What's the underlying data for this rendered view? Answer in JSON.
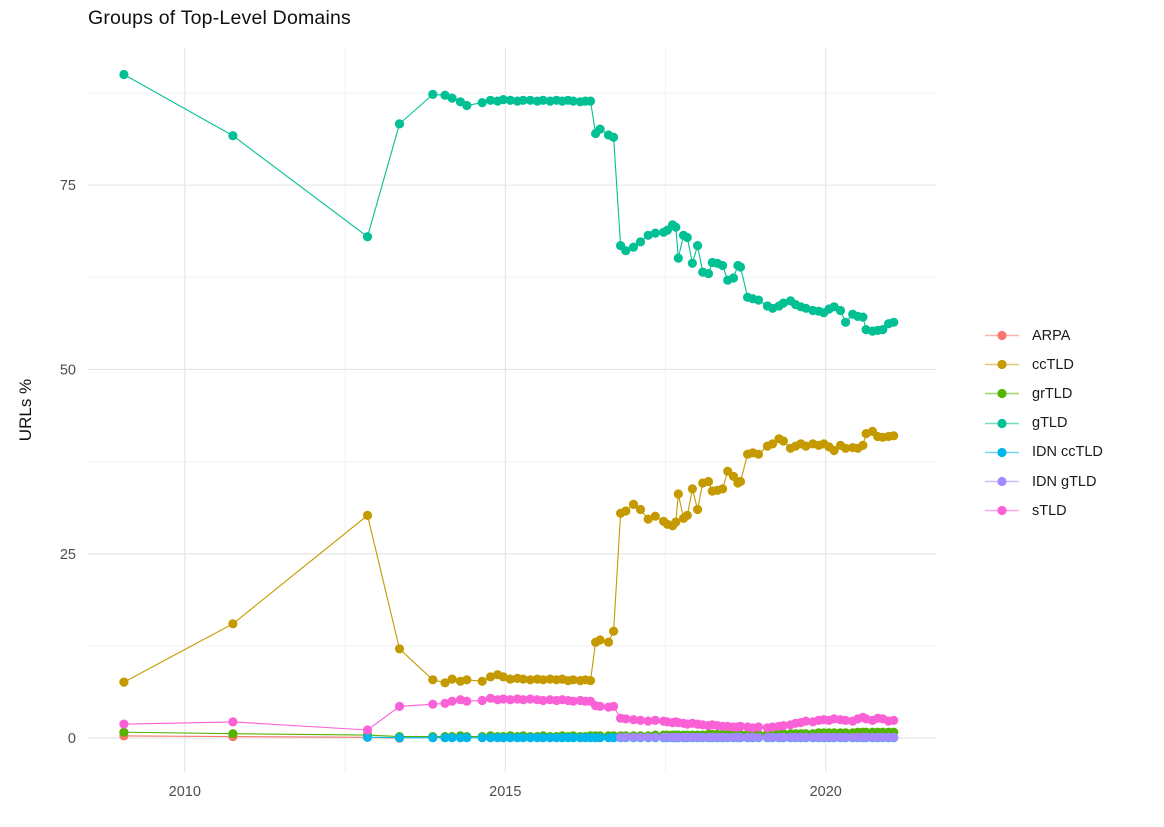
{
  "chart_data": {
    "type": "line",
    "title": "Groups of Top-Level Domains",
    "xlabel": "",
    "ylabel": "URLs %",
    "x_unit": "year",
    "grid": true,
    "legend_position": "right",
    "xlim": [
      2008.49,
      2021.72
    ],
    "ylim": [
      -4.6,
      93.6
    ],
    "x_ticks": [
      2010,
      2015,
      2020
    ],
    "x_minor_ticks": [
      2012.5,
      2017.5
    ],
    "y_ticks": [
      0,
      25,
      50,
      75
    ],
    "y_minor_ticks": [
      12.5,
      37.5,
      62.5,
      87.5
    ],
    "x": [
      2009.05,
      2010.75,
      2012.85,
      2013.35,
      2013.87,
      2014.06,
      2014.17,
      2014.3,
      2014.4,
      2014.64,
      2014.77,
      2014.88,
      2014.97,
      2015.08,
      2015.19,
      2015.28,
      2015.39,
      2015.5,
      2015.59,
      2015.7,
      2015.8,
      2015.89,
      2015.98,
      2016.06,
      2016.17,
      2016.25,
      2016.33,
      2016.41,
      2016.48,
      2016.61,
      2016.69,
      2016.8,
      2016.88,
      2017.0,
      2017.11,
      2017.23,
      2017.34,
      2017.47,
      2017.53,
      2017.61,
      2017.66,
      2017.7,
      2017.78,
      2017.84,
      2017.92,
      2018.0,
      2018.08,
      2018.17,
      2018.23,
      2018.31,
      2018.39,
      2018.47,
      2018.56,
      2018.63,
      2018.67,
      2018.78,
      2018.86,
      2018.95,
      2019.09,
      2019.17,
      2019.27,
      2019.34,
      2019.45,
      2019.53,
      2019.61,
      2019.69,
      2019.8,
      2019.89,
      2019.97,
      2020.05,
      2020.13,
      2020.23,
      2020.31,
      2020.42,
      2020.5,
      2020.58,
      2020.63,
      2020.73,
      2020.81,
      2020.89,
      2020.98,
      2021.06
    ],
    "draw_order": [
      "ARPA",
      "ccTLD",
      "grTLD",
      "gTLD",
      "IDN ccTLD",
      "IDN gTLD",
      "sTLD"
    ],
    "series": [
      {
        "name": "ARPA",
        "color": "#F8766D",
        "x_from_index": 0,
        "values": [
          0.3,
          0.2,
          0.1,
          0.0
        ]
      },
      {
        "name": "ccTLD",
        "color": "#C49A00",
        "x_from_index": 0,
        "values": [
          7.6,
          15.5,
          30.2,
          12.1,
          7.9,
          7.5,
          8.0,
          7.7,
          7.9,
          7.7,
          8.3,
          8.6,
          8.3,
          8.0,
          8.1,
          8.0,
          7.9,
          8.0,
          7.9,
          8.0,
          7.9,
          8.0,
          7.8,
          7.9,
          7.8,
          7.9,
          7.8,
          13.0,
          13.3,
          13.0,
          14.5,
          30.5,
          30.8,
          31.7,
          31.0,
          29.7,
          30.1,
          29.4,
          29.0,
          28.8,
          29.3,
          33.1,
          29.8,
          30.2,
          33.8,
          31.0,
          34.6,
          34.8,
          33.5,
          33.6,
          33.8,
          36.2,
          35.5,
          34.6,
          34.8,
          38.5,
          38.7,
          38.5,
          39.6,
          39.9,
          40.6,
          40.3,
          39.3,
          39.6,
          39.9,
          39.6,
          39.9,
          39.7,
          39.9,
          39.5,
          39.0,
          39.7,
          39.3,
          39.4,
          39.3,
          39.7,
          41.3,
          41.6,
          40.9,
          40.8,
          40.9,
          41.0
        ]
      },
      {
        "name": "grTLD",
        "color": "#53B400",
        "x_from_index": 0,
        "values": [
          0.8,
          0.6,
          0.4,
          0.2,
          0.2,
          0.2,
          0.2,
          0.3,
          0.2,
          0.2,
          0.3,
          0.2,
          0.2,
          0.3,
          0.2,
          0.3,
          0.2,
          0.2,
          0.3,
          0.2,
          0.2,
          0.3,
          0.2,
          0.3,
          0.2,
          0.2,
          0.3,
          0.3,
          0.3,
          0.3,
          0.3,
          0.3,
          0.3,
          0.3,
          0.3,
          0.3,
          0.4,
          0.4,
          0.4,
          0.4,
          0.4,
          0.4,
          0.4,
          0.4,
          0.4,
          0.4,
          0.4,
          0.5,
          0.5,
          0.5,
          0.5,
          0.5,
          0.5,
          0.5,
          0.5,
          0.5,
          0.5,
          0.5,
          0.6,
          0.6,
          0.6,
          0.6,
          0.6,
          0.6,
          0.6,
          0.6,
          0.6,
          0.7,
          0.7,
          0.7,
          0.7,
          0.7,
          0.7,
          0.7,
          0.8,
          0.8,
          0.8,
          0.8,
          0.8,
          0.8,
          0.8,
          0.8
        ]
      },
      {
        "name": "gTLD",
        "color": "#00C094",
        "x_from_index": 0,
        "values": [
          90.0,
          81.7,
          68.0,
          83.3,
          87.3,
          87.2,
          86.8,
          86.3,
          85.8,
          86.2,
          86.5,
          86.4,
          86.6,
          86.5,
          86.4,
          86.5,
          86.5,
          86.4,
          86.5,
          86.4,
          86.5,
          86.4,
          86.5,
          86.4,
          86.3,
          86.4,
          86.4,
          82.0,
          82.6,
          81.8,
          81.5,
          66.8,
          66.1,
          66.6,
          67.3,
          68.2,
          68.5,
          68.6,
          68.9,
          69.6,
          69.3,
          65.1,
          68.2,
          67.9,
          64.4,
          66.8,
          63.2,
          63.0,
          64.5,
          64.4,
          64.1,
          62.1,
          62.4,
          64.1,
          63.9,
          59.8,
          59.6,
          59.4,
          58.6,
          58.3,
          58.6,
          59.0,
          59.3,
          58.8,
          58.5,
          58.3,
          58.0,
          57.9,
          57.7,
          58.2,
          58.5,
          58.0,
          56.4,
          57.5,
          57.2,
          57.1,
          55.4,
          55.2,
          55.3,
          55.4,
          56.2,
          56.4
        ]
      },
      {
        "name": "IDN ccTLD",
        "color": "#00B6EB",
        "x_from_index": 2,
        "values": [
          0.1,
          0.05,
          0.05,
          0.05,
          0.05,
          0.05,
          0.05,
          0.05,
          0.05,
          0.05,
          0.05,
          0.05,
          0.05,
          0.05,
          0.05,
          0.05,
          0.05,
          0.05,
          0.05,
          0.05,
          0.05,
          0.05,
          0.05,
          0.05,
          0.05,
          0.05,
          0.05,
          0.05,
          0.05,
          0.05,
          0.05,
          0.05,
          0.05,
          0.05,
          0.05,
          0.05,
          0.05,
          0.05,
          0.05,
          0.05,
          0.05,
          0.05,
          0.05,
          0.05,
          0.05,
          0.05,
          0.05,
          0.05,
          0.05,
          0.05,
          0.05,
          0.05,
          0.05,
          0.05,
          0.05,
          0.05,
          0.05,
          0.05,
          0.05,
          0.05,
          0.05,
          0.05,
          0.05,
          0.05,
          0.05,
          0.05,
          0.05,
          0.05,
          0.05,
          0.05,
          0.05,
          0.05,
          0.05,
          0.05,
          0.05,
          0.05,
          0.05,
          0.05,
          0.05,
          0.05
        ]
      },
      {
        "name": "IDN gTLD",
        "color": "#A58AFF",
        "x_from_index": 31,
        "values": [
          0.1,
          0.1,
          0.1,
          0.1,
          0.1,
          0.1,
          0.1,
          0.1,
          0.1,
          0.1,
          0.1,
          0.1,
          0.1,
          0.1,
          0.1,
          0.1,
          0.1,
          0.1,
          0.1,
          0.1,
          0.1,
          0.1,
          0.1,
          0.1,
          0.1,
          0.1,
          0.1,
          0.1,
          0.1,
          0.1,
          0.1,
          0.1,
          0.1,
          0.1,
          0.1,
          0.1,
          0.1,
          0.1,
          0.1,
          0.1,
          0.1,
          0.1,
          0.1,
          0.1,
          0.1,
          0.1,
          0.1,
          0.1,
          0.1,
          0.1,
          0.1
        ]
      },
      {
        "name": "sTLD",
        "color": "#FB61D7",
        "x_from_index": 0,
        "values": [
          1.9,
          2.2,
          1.1,
          4.3,
          4.6,
          4.7,
          5.0,
          5.2,
          5.0,
          5.1,
          5.4,
          5.2,
          5.3,
          5.2,
          5.3,
          5.2,
          5.3,
          5.2,
          5.1,
          5.2,
          5.1,
          5.2,
          5.1,
          5.0,
          5.1,
          5.0,
          5.0,
          4.4,
          4.3,
          4.2,
          4.3,
          2.7,
          2.6,
          2.5,
          2.4,
          2.3,
          2.4,
          2.3,
          2.2,
          2.1,
          2.2,
          2.1,
          2.0,
          1.9,
          2.0,
          1.9,
          1.8,
          1.7,
          1.8,
          1.7,
          1.6,
          1.6,
          1.5,
          1.5,
          1.6,
          1.5,
          1.4,
          1.5,
          1.4,
          1.5,
          1.6,
          1.7,
          1.8,
          2.0,
          2.1,
          2.3,
          2.2,
          2.4,
          2.5,
          2.4,
          2.6,
          2.5,
          2.4,
          2.3,
          2.6,
          2.8,
          2.6,
          2.4,
          2.7,
          2.6,
          2.3,
          2.4
        ]
      }
    ]
  }
}
